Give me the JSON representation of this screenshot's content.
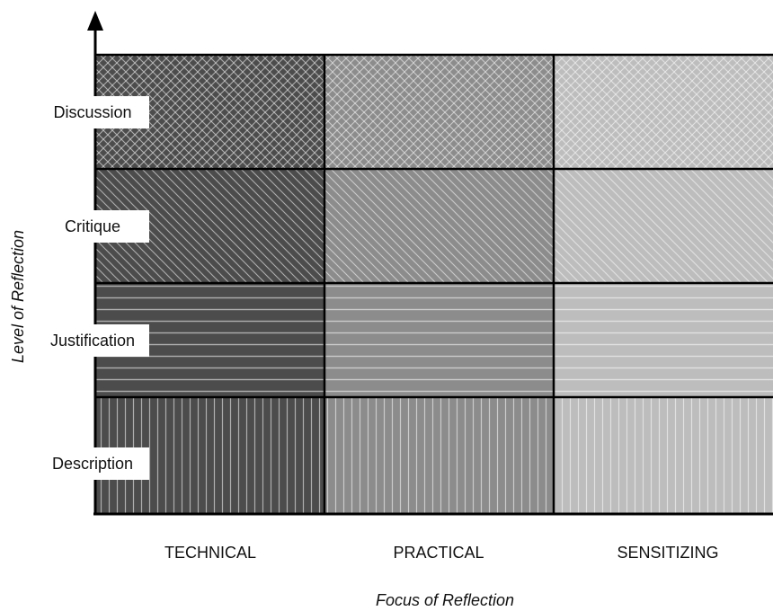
{
  "axes": {
    "x_title": "Focus of Reflection",
    "y_title": "Level of Reflection"
  },
  "columns": [
    "TECHNICAL",
    "PRACTICAL",
    "SENSITIZING"
  ],
  "rows": [
    "Discussion",
    "Critique",
    "Justification",
    "Description"
  ],
  "row_patterns": {
    "Discussion": "crosshatch",
    "Critique": "diagonal",
    "Justification": "horizontal",
    "Description": "vertical"
  },
  "column_shades": {
    "TECHNICAL": "#4c4c4c",
    "PRACTICAL": "#8c8c8c",
    "SENSITIZING": "#bdbdbd"
  },
  "colors": {
    "grid_line": "#000000",
    "pattern_line": "#ffffff"
  }
}
